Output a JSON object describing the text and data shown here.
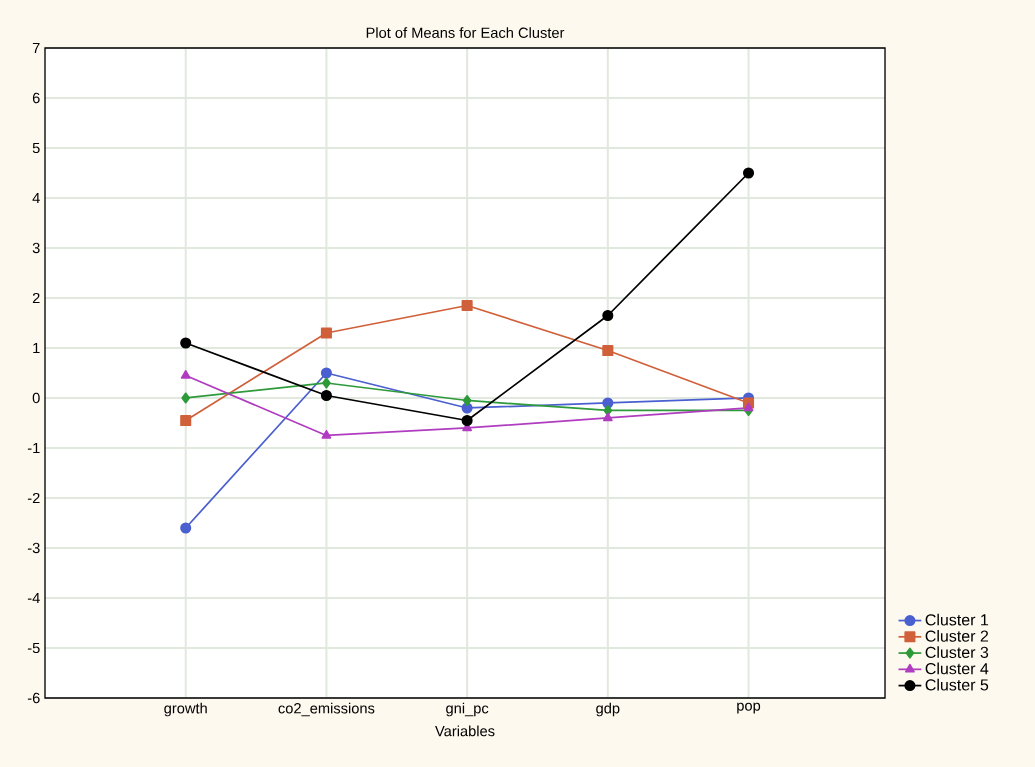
{
  "chart_data": {
    "type": "line",
    "title": "Plot of Means for Each Cluster",
    "xlabel": "Variables",
    "categories": [
      "growth",
      "co2_emissions",
      "gni_pc",
      "gdp",
      "pop"
    ],
    "series": [
      {
        "name": "Cluster  1",
        "color": "#4a5fd0",
        "marker": "circle",
        "values": [
          -2.6,
          0.5,
          -0.2,
          -0.1,
          0.0
        ]
      },
      {
        "name": "Cluster  2",
        "color": "#d0603a",
        "marker": "square",
        "values": [
          -0.45,
          1.3,
          1.85,
          0.95,
          -0.1
        ]
      },
      {
        "name": "Cluster  3",
        "color": "#2e9a3a",
        "marker": "diamond",
        "values": [
          0.0,
          0.3,
          -0.05,
          -0.25,
          -0.25
        ]
      },
      {
        "name": "Cluster  4",
        "color": "#b03cc0",
        "marker": "triangle",
        "values": [
          0.45,
          -0.75,
          -0.6,
          -0.4,
          -0.2
        ]
      },
      {
        "name": "Cluster  5",
        "color": "#000000",
        "marker": "circle",
        "values": [
          1.1,
          0.05,
          -0.45,
          1.65,
          4.5
        ]
      }
    ],
    "ylim": [
      -6,
      7
    ],
    "yticks": [
      -6,
      -5,
      -4,
      -3,
      -2,
      -1,
      0,
      1,
      2,
      3,
      4,
      5,
      6,
      7
    ],
    "grid": true,
    "legend": "bottom right",
    "line_style": "solid"
  }
}
